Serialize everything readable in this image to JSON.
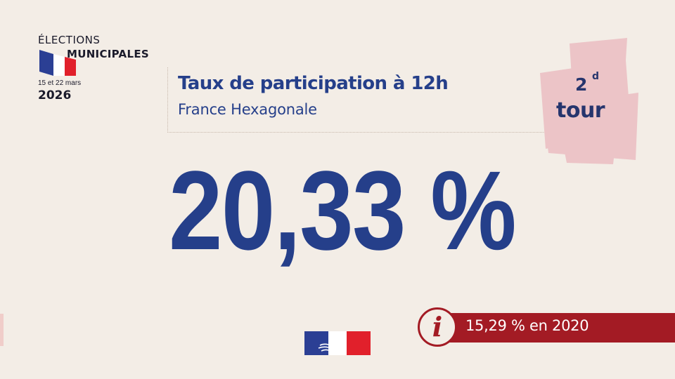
{
  "election_logo": {
    "line1": "ÉLECTIONS",
    "line2": "MUNICIPALES",
    "dates": "15 et 22 mars",
    "year": "2026",
    "flag_colors": [
      "#2b3f94",
      "#ffffff",
      "#e1202b"
    ]
  },
  "header": {
    "title": "Taux de participation à 12h",
    "subtitle": "France Hexagonale"
  },
  "round_tag": {
    "number": "2",
    "superscript": "d",
    "word": "tour",
    "background_color": "#ecc4c7"
  },
  "participation": {
    "value": "20,33 %"
  },
  "comparison": {
    "icon": "info-icon",
    "text": "15,29 % en 2020",
    "color": "#a31b24"
  },
  "government_logo": {
    "icon": "marianne-flag-icon",
    "colors": [
      "#2b3f94",
      "#ffffff",
      "#e1202b"
    ]
  },
  "colors": {
    "background": "#f3ede6",
    "primary_blue": "#253f8a",
    "accent_red": "#a31b24"
  }
}
